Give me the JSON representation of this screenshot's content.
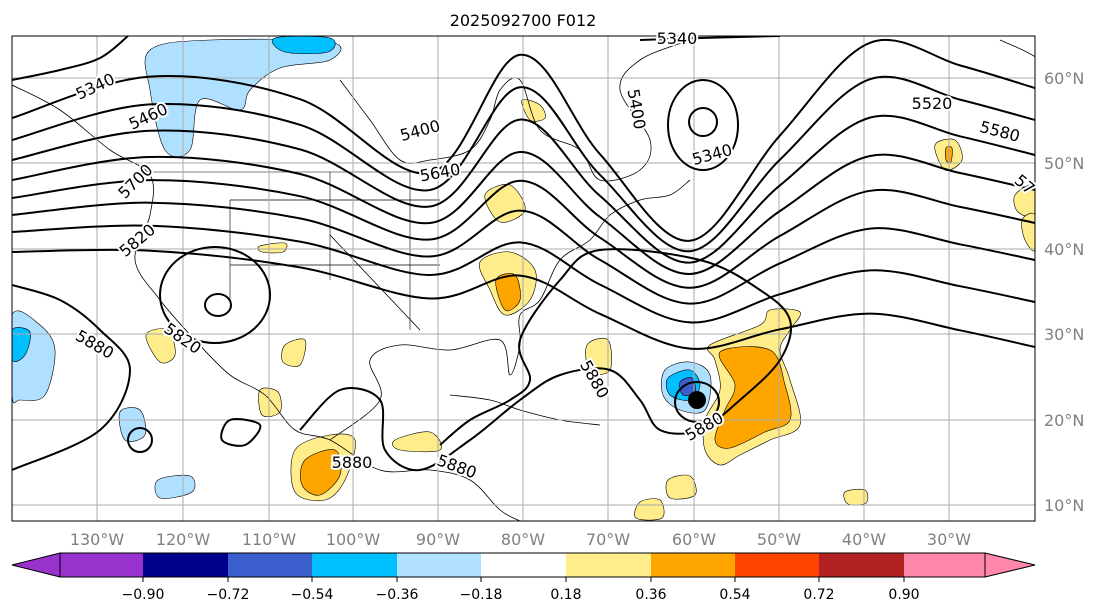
{
  "title": "2025092700 F012",
  "map": {
    "latitude_labels": [
      "60°N",
      "50°N",
      "40°N",
      "30°N",
      "20°N",
      "10°N"
    ],
    "longitude_labels": [
      "130°W",
      "120°W",
      "110°W",
      "100°W",
      "90°W",
      "80°W",
      "70°W",
      "60°W",
      "50°W",
      "40°W",
      "30°W"
    ],
    "contour_labels": [
      "5340",
      "5460",
      "5400",
      "5340",
      "5400",
      "5340",
      "5520",
      "5580",
      "5640",
      "57",
      "5700",
      "5820",
      "5820",
      "5880",
      "5880",
      "5880",
      "5880",
      "5880"
    ],
    "contour_color": "#000000",
    "shading_colors": {
      "light_blue": "#b0e0ff",
      "cyan": "#00bfff",
      "blue": "#3a5fcd",
      "yellow": "#ffec8b",
      "orange": "#ffa500",
      "red_orange": "#ff4500"
    }
  },
  "colorbar": {
    "colors": [
      "#9932cc",
      "#00008b",
      "#3a5fcd",
      "#00bfff",
      "#b0e2ff",
      "#ffffff",
      "#ffec8b",
      "#ffa500",
      "#ff4500",
      "#b22222",
      "#ff88aa"
    ],
    "tick_labels": [
      "−0.90",
      "−0.72",
      "−0.54",
      "−0.36",
      "−0.18",
      "0.18",
      "0.36",
      "0.54",
      "0.72",
      "0.90"
    ]
  }
}
